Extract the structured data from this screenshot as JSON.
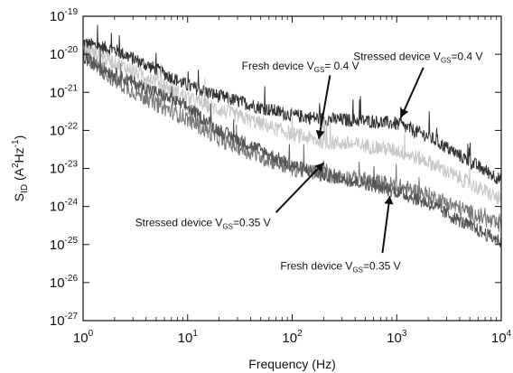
{
  "chart_data": {
    "type": "line",
    "title": "",
    "xlabel": "Frequency (Hz)",
    "ylabel": {
      "main": "S",
      "sub": "ID",
      "rest": " (A",
      "sup1": "2",
      "mid": "Hz",
      "sup2": "-1",
      "end": ")"
    },
    "x_scale": "log",
    "y_scale": "log",
    "xlim": [
      1,
      10000
    ],
    "ylim": [
      1e-27,
      1e-19
    ],
    "grid": false,
    "x_ticks": [
      {
        "value": 1,
        "label": "10",
        "exp": "0"
      },
      {
        "value": 10,
        "label": "10",
        "exp": "1"
      },
      {
        "value": 100,
        "label": "10",
        "exp": "2"
      },
      {
        "value": 1000,
        "label": "10",
        "exp": "3"
      },
      {
        "value": 10000,
        "label": "10",
        "exp": "4"
      }
    ],
    "y_ticks": [
      {
        "value": 1e-19,
        "label": "10",
        "exp": "-19"
      },
      {
        "value": 1e-20,
        "label": "10",
        "exp": "-20"
      },
      {
        "value": 1e-21,
        "label": "10",
        "exp": "-21"
      },
      {
        "value": 1e-22,
        "label": "10",
        "exp": "-22"
      },
      {
        "value": 1e-23,
        "label": "10",
        "exp": "-23"
      },
      {
        "value": 1e-24,
        "label": "10",
        "exp": "-24"
      },
      {
        "value": 1e-25,
        "label": "10",
        "exp": "-25"
      },
      {
        "value": 1e-26,
        "label": "10",
        "exp": "-26"
      },
      {
        "value": 1e-27,
        "label": "10",
        "exp": "-27"
      }
    ],
    "series": [
      {
        "color": "#333333",
        "noise": 0.18,
        "x": [
          1,
          2,
          5,
          10,
          20,
          50,
          100,
          200,
          500,
          1000,
          2000,
          5000,
          10000
        ],
        "y": [
          2e-20,
          1.3e-20,
          4e-21,
          1.5e-21,
          8e-22,
          4e-22,
          2.5e-22,
          2e-22,
          1.8e-22,
          1.5e-22,
          7e-23,
          1.5e-23,
          5e-24
        ]
      },
      {
        "color": "#c8c8c8",
        "noise": 0.2,
        "x": [
          1,
          2,
          5,
          10,
          20,
          50,
          100,
          200,
          500,
          1000,
          2000,
          5000,
          10000
        ],
        "y": [
          1.5e-20,
          6e-21,
          2e-21,
          7e-22,
          3.5e-22,
          1.5e-22,
          8e-23,
          5e-23,
          4e-23,
          3e-23,
          1.5e-23,
          4e-24,
          1.5e-24
        ]
      },
      {
        "color": "#777777",
        "noise": 0.22,
        "x": [
          1,
          2,
          5,
          10,
          20,
          50,
          100,
          200,
          500,
          1000,
          2000,
          5000,
          10000
        ],
        "y": [
          1e-20,
          2e-21,
          5e-22,
          2e-22,
          6e-23,
          2e-23,
          1e-23,
          7e-24,
          5e-24,
          3.5e-24,
          2e-24,
          7e-25,
          3e-25
        ]
      },
      {
        "color": "#555555",
        "noise": 0.18,
        "x": [
          1,
          2,
          5,
          10,
          20,
          50,
          100,
          200,
          500,
          1000,
          2000,
          5000,
          10000
        ],
        "y": [
          8e-21,
          3e-21,
          1e-21,
          4e-22,
          1e-22,
          3e-23,
          1.2e-23,
          7e-24,
          4e-24,
          2.5e-24,
          1.2e-24,
          3e-25,
          1.2e-25
        ]
      }
    ],
    "annotations": [
      {
        "main": "Fresh device V",
        "sub": "GS",
        "tail": "= 0.4 V",
        "text_x": 120.0,
        "text_y": 4e-21,
        "arrow_from_x": 230.0,
        "arrow_from_y": 2.8e-21,
        "arrow_to_x": 180.0,
        "arrow_to_y": 6e-23
      },
      {
        "main": "Stressed device V",
        "sub": "GS",
        "tail": "=0.4 V",
        "text_x": 1600.0,
        "text_y": 7e-21,
        "arrow_from_x": 1800.0,
        "arrow_from_y": 4.5e-21,
        "arrow_to_x": 1100.0,
        "arrow_to_y": 2.2e-22
      },
      {
        "main": "Stressed device V",
        "sub": "GS",
        "tail": "=0.35 V",
        "text_x": 14,
        "text_y": 3e-25,
        "arrow_from_x": 70,
        "arrow_from_y": 7e-25,
        "arrow_to_x": 200.0,
        "arrow_to_y": 1.4e-23
      },
      {
        "main": "Fresh device V",
        "sub": "GS",
        "tail": "=0.35 V",
        "text_x": 290.0,
        "text_y": 2.2e-26,
        "arrow_from_x": 730.0,
        "arrow_from_y": 6e-26,
        "arrow_to_x": 860.0,
        "arrow_to_y": 1.9e-24
      }
    ]
  }
}
